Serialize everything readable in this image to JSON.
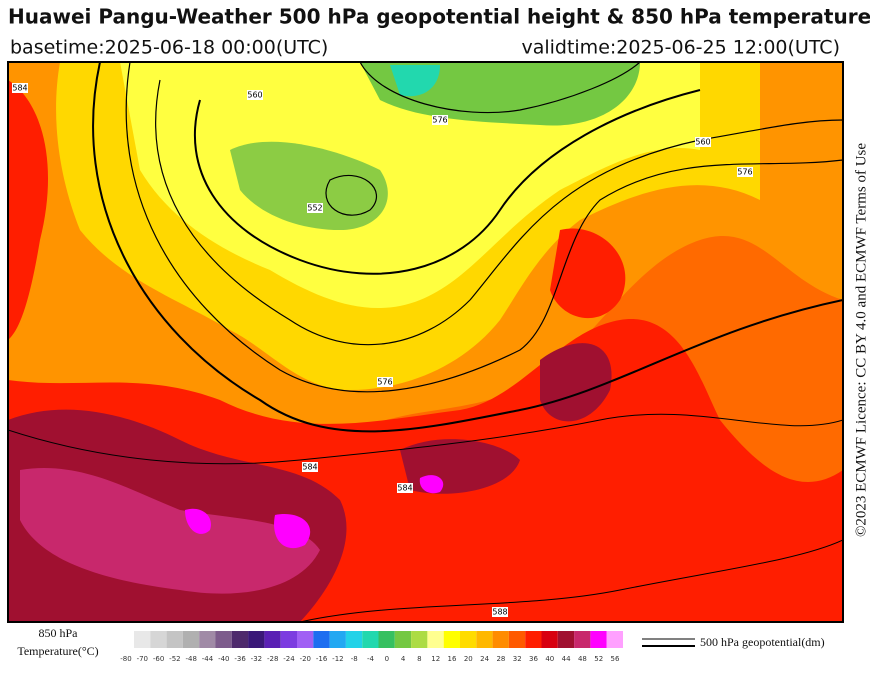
{
  "header": {
    "title": "Huawei Pangu-Weather 500 hPa geopotential height & 850 hPa temperature",
    "basetime": "basetime:2025-06-18 00:00(UTC)",
    "validtime": "validtime:2025-06-25 12:00(UTC)"
  },
  "license": "©2023 ECMWF Licence: CC BY 4.0 and ECMWF Terms of Use",
  "contour_labels": [
    "584",
    "560",
    "576",
    "552",
    "560",
    "576",
    "584",
    "588",
    "584",
    "576"
  ],
  "colorbar": {
    "label_line1": "850 hPa",
    "label_line2": "Temperature(°C)",
    "ticks": [
      -80,
      -70,
      -60,
      -52,
      -48,
      -44,
      -40,
      -36,
      -32,
      -28,
      -24,
      -20,
      -16,
      -12,
      -8,
      -4,
      0,
      4,
      8,
      12,
      16,
      20,
      24,
      28,
      32,
      36,
      40,
      44,
      48,
      52,
      56
    ],
    "colors": [
      "#e8e8e8",
      "#d6d6d6",
      "#c4c4c4",
      "#b0b0b0",
      "#a08aa6",
      "#7d5c8c",
      "#4e2a6c",
      "#3a1878",
      "#5a20b4",
      "#7c3ce0",
      "#a060f4",
      "#1e6ef0",
      "#22a8f2",
      "#22d2e8",
      "#22d8ae",
      "#36c060",
      "#74c842",
      "#acdc44",
      "#ffff90",
      "#ffff00",
      "#ffdc00",
      "#ffb800",
      "#ff8c00",
      "#ff5a00",
      "#ff1e00",
      "#d80010",
      "#a01030",
      "#c8286c",
      "#ff00ff",
      "#ffa0ff"
    ]
  },
  "contour_legend": "500 hPa geopotential(dm)"
}
